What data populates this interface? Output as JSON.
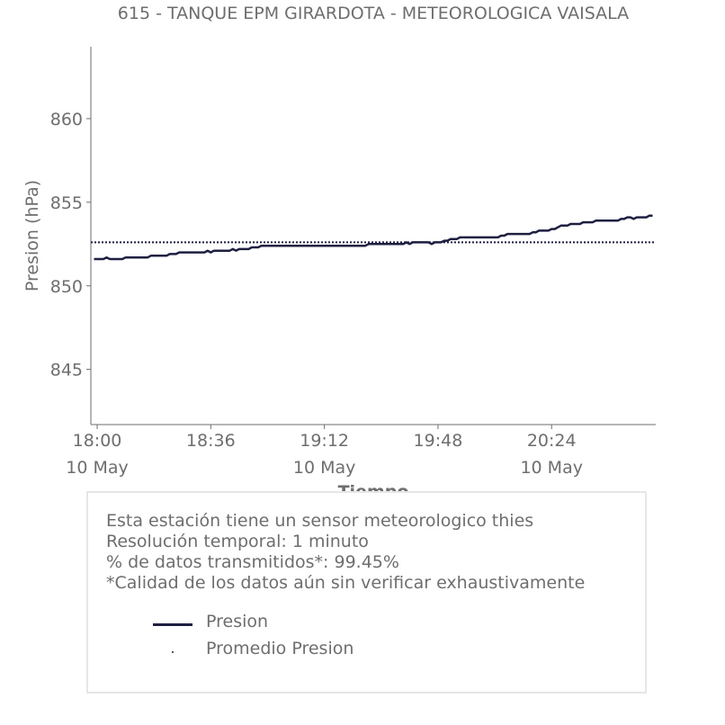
{
  "colors": {
    "series": "#1f1f42",
    "mean": "#1f1f42",
    "text": "#6e6e6e",
    "box_border": "#e6e6e6"
  },
  "chart_data": {
    "type": "line",
    "title": "615 - TANQUE EPM GIRARDOTA - METEOROLOGICA VAISALA",
    "xlabel": "Tiempo",
    "ylabel": "Presion (hPa)",
    "ylim": [
      841.7,
      864.3
    ],
    "yticks": [
      845,
      850,
      855,
      860
    ],
    "ytick_labels": [
      "845",
      "850",
      "855",
      "860"
    ],
    "xlim_minutes": [
      -2,
      177
    ],
    "xticks": [
      {
        "minute": 0,
        "time": "18:00",
        "date": "10 May"
      },
      {
        "minute": 36,
        "time": "18:36",
        "date": ""
      },
      {
        "minute": 72,
        "time": "19:12",
        "date": "10 May"
      },
      {
        "minute": 108,
        "time": "19:48",
        "date": ""
      },
      {
        "minute": 144,
        "time": "20:24",
        "date": "10 May"
      }
    ],
    "grid": false,
    "series": [
      {
        "name": "Presion",
        "style": "solid",
        "points": [
          [
            -1,
            851.6
          ],
          [
            2,
            851.6
          ],
          [
            3,
            851.7
          ],
          [
            4,
            851.6
          ],
          [
            8,
            851.6
          ],
          [
            9,
            851.7
          ],
          [
            16,
            851.7
          ],
          [
            17,
            851.8
          ],
          [
            22,
            851.8
          ],
          [
            23,
            851.9
          ],
          [
            25,
            851.9
          ],
          [
            26,
            852.0
          ],
          [
            34,
            852.0
          ],
          [
            35,
            852.1
          ],
          [
            36,
            852.0
          ],
          [
            37,
            852.1
          ],
          [
            42,
            852.1
          ],
          [
            43,
            852.2
          ],
          [
            44,
            852.1
          ],
          [
            45,
            852.2
          ],
          [
            48,
            852.2
          ],
          [
            49,
            852.3
          ],
          [
            51,
            852.3
          ],
          [
            52,
            852.4
          ],
          [
            85,
            852.4
          ],
          [
            86,
            852.5
          ],
          [
            97,
            852.5
          ],
          [
            98,
            852.6
          ],
          [
            99,
            852.5
          ],
          [
            100,
            852.6
          ],
          [
            105,
            852.6
          ],
          [
            106,
            852.5
          ],
          [
            107,
            852.6
          ],
          [
            109,
            852.6
          ],
          [
            110,
            852.7
          ],
          [
            111,
            852.7
          ],
          [
            112,
            852.8
          ],
          [
            114,
            852.8
          ],
          [
            115,
            852.9
          ],
          [
            127,
            852.9
          ],
          [
            128,
            853.0
          ],
          [
            129,
            853.0
          ],
          [
            130,
            853.1
          ],
          [
            137,
            853.1
          ],
          [
            138,
            853.2
          ],
          [
            139,
            853.2
          ],
          [
            140,
            853.3
          ],
          [
            143,
            853.3
          ],
          [
            144,
            853.4
          ],
          [
            145,
            853.4
          ],
          [
            146,
            853.5
          ],
          [
            147,
            853.6
          ],
          [
            149,
            853.6
          ],
          [
            150,
            853.7
          ],
          [
            153,
            853.7
          ],
          [
            154,
            853.8
          ],
          [
            157,
            853.8
          ],
          [
            158,
            853.9
          ],
          [
            165,
            853.9
          ],
          [
            166,
            854.0
          ],
          [
            167,
            854.0
          ],
          [
            168,
            854.1
          ],
          [
            169,
            854.1
          ],
          [
            170,
            854.0
          ],
          [
            171,
            854.1
          ],
          [
            174,
            854.1
          ],
          [
            175,
            854.2
          ],
          [
            176,
            854.2
          ]
        ]
      },
      {
        "name": "Promedio Presion",
        "style": "dotted",
        "value": 852.6
      }
    ]
  },
  "info": {
    "lines": [
      "Esta estación tiene un sensor meteorologico thies",
      "Resolución temporal: 1 minuto",
      "% de datos transmitidos*: 99.45%",
      "*Calidad de los datos aún sin verificar exhaustivamente"
    ]
  },
  "legend": [
    {
      "label": "Presion",
      "marker": "line"
    },
    {
      "label": "Promedio Presion",
      "marker": "dot"
    }
  ]
}
